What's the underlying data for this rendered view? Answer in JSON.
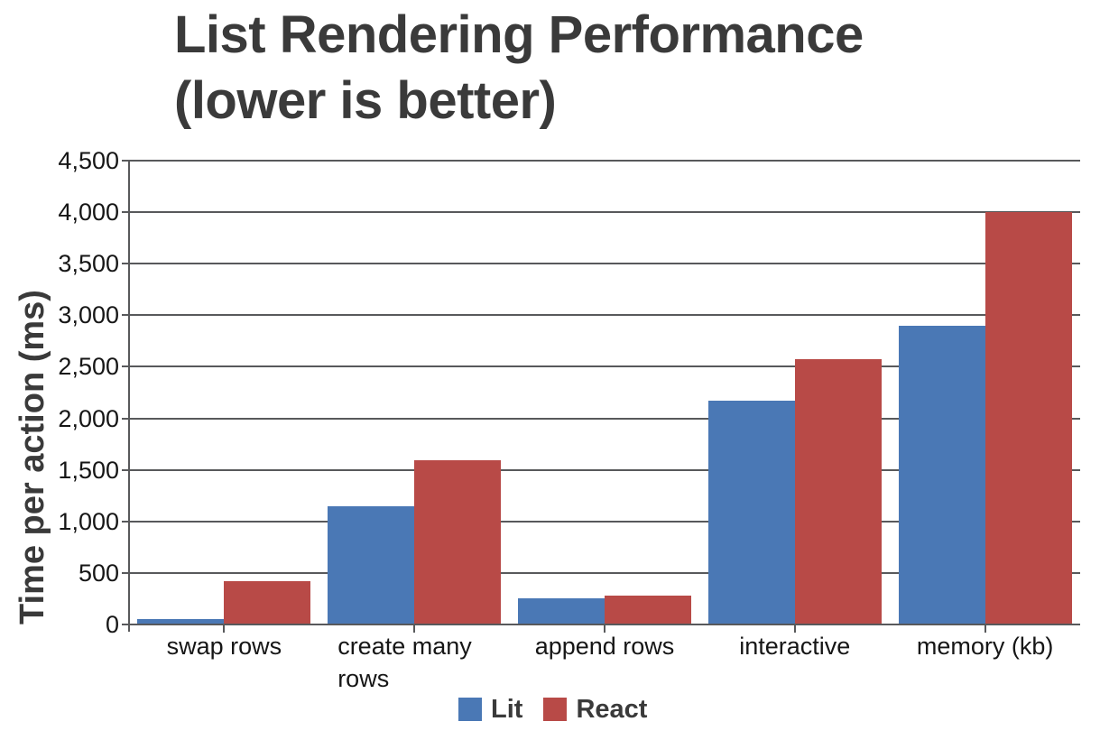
{
  "title": {
    "line1": "List Rendering Performance",
    "line2": "(lower is better)"
  },
  "chart_data": {
    "type": "bar",
    "title": "List Rendering Performance (lower is better)",
    "categories": [
      "swap rows",
      "create many rows",
      "append rows",
      "interactive",
      "memory (kb)"
    ],
    "series": [
      {
        "name": "Lit",
        "color": "#4a78b5",
        "values": [
          50,
          1150,
          250,
          2170,
          2900
        ]
      },
      {
        "name": "React",
        "color": "#b84a47",
        "values": [
          420,
          1590,
          280,
          2570,
          4000
        ]
      }
    ],
    "xlabel": "",
    "ylabel": "Time per action (ms)",
    "ylim": [
      0,
      4500
    ],
    "ytick_step": 500,
    "ytick_labels": [
      "0",
      "500",
      "1,000",
      "1,500",
      "2,000",
      "2,500",
      "3,000",
      "3,500",
      "4,000",
      "4,500"
    ],
    "grid": true,
    "grid_color": "#58595b",
    "legend_position": "bottom",
    "legend": [
      {
        "label": "Lit",
        "color": "#4a78b5"
      },
      {
        "label": "React",
        "color": "#b84a47"
      }
    ]
  }
}
